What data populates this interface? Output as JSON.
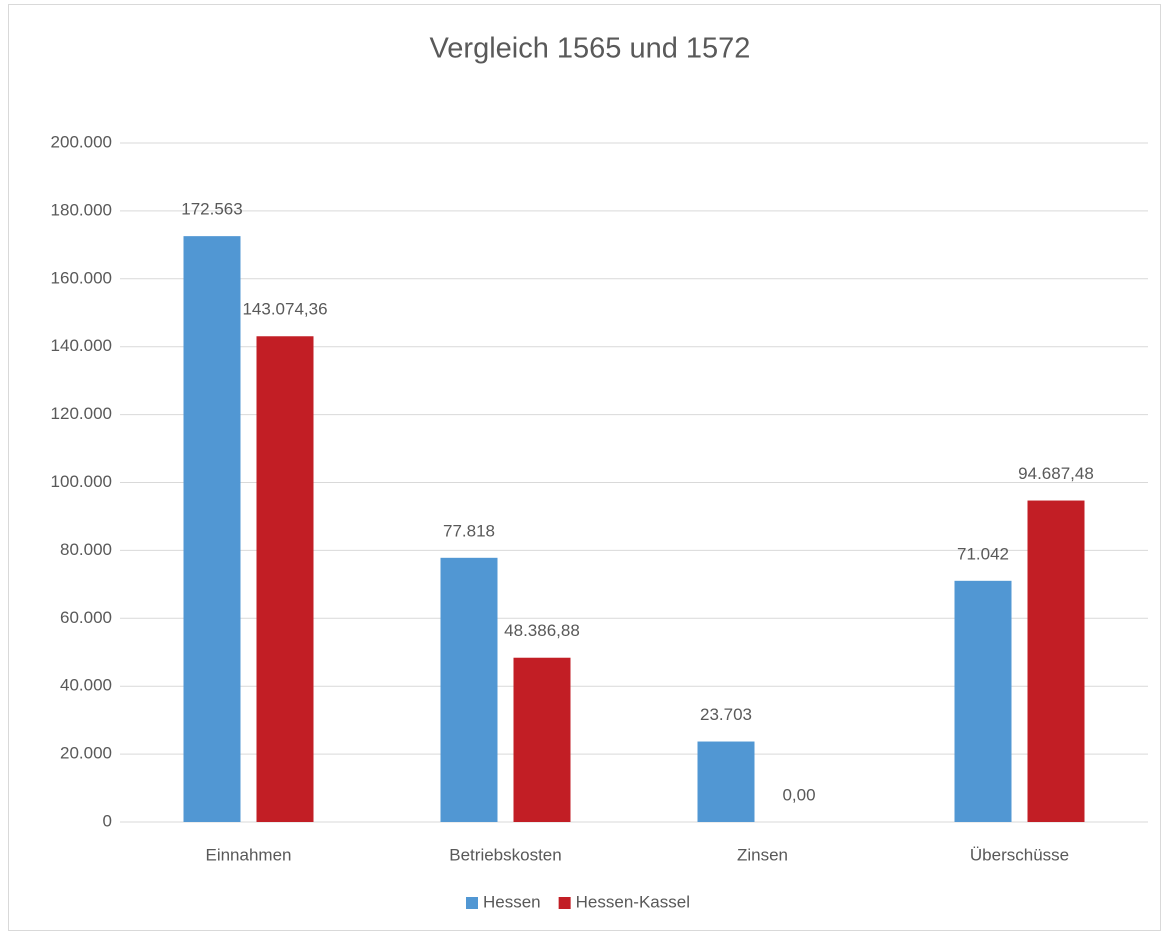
{
  "chart_data": {
    "type": "bar",
    "title": "Vergleich 1565 und 1572",
    "categories": [
      "Einnahmen",
      "Betriebskosten",
      "Zinsen",
      "Überschüsse"
    ],
    "series": [
      {
        "name": "Hessen",
        "color": "#5197d3",
        "values": [
          172563,
          77818,
          23703,
          71042
        ],
        "value_labels": [
          "172.563",
          "77.818",
          "23.703",
          "71.042"
        ]
      },
      {
        "name": "Hessen-Kassel",
        "color": "#c21e25",
        "values": [
          143074.36,
          48386.88,
          0,
          94687.48
        ],
        "value_labels": [
          "143.074,36",
          "48.386,88",
          "0,00",
          "94.687,48"
        ]
      }
    ],
    "ylim": [
      0,
      200000
    ],
    "yticks": [
      0,
      {
        "value": 20000,
        "label": "20.000"
      },
      {
        "value": 40000,
        "label": "40.000"
      },
      {
        "value": 60000,
        "label": "60.000"
      },
      {
        "value": 80000,
        "label": "80.000"
      },
      {
        "value": 100000,
        "label": "100.000"
      },
      {
        "value": 120000,
        "label": "120.000"
      },
      {
        "value": 140000,
        "label": "140.000"
      },
      {
        "value": 160000,
        "label": "160.000"
      },
      {
        "value": 180000,
        "label": "180.000"
      },
      {
        "value": 200000,
        "label": "200.000"
      }
    ],
    "grid": true,
    "legend": "bottom"
  }
}
